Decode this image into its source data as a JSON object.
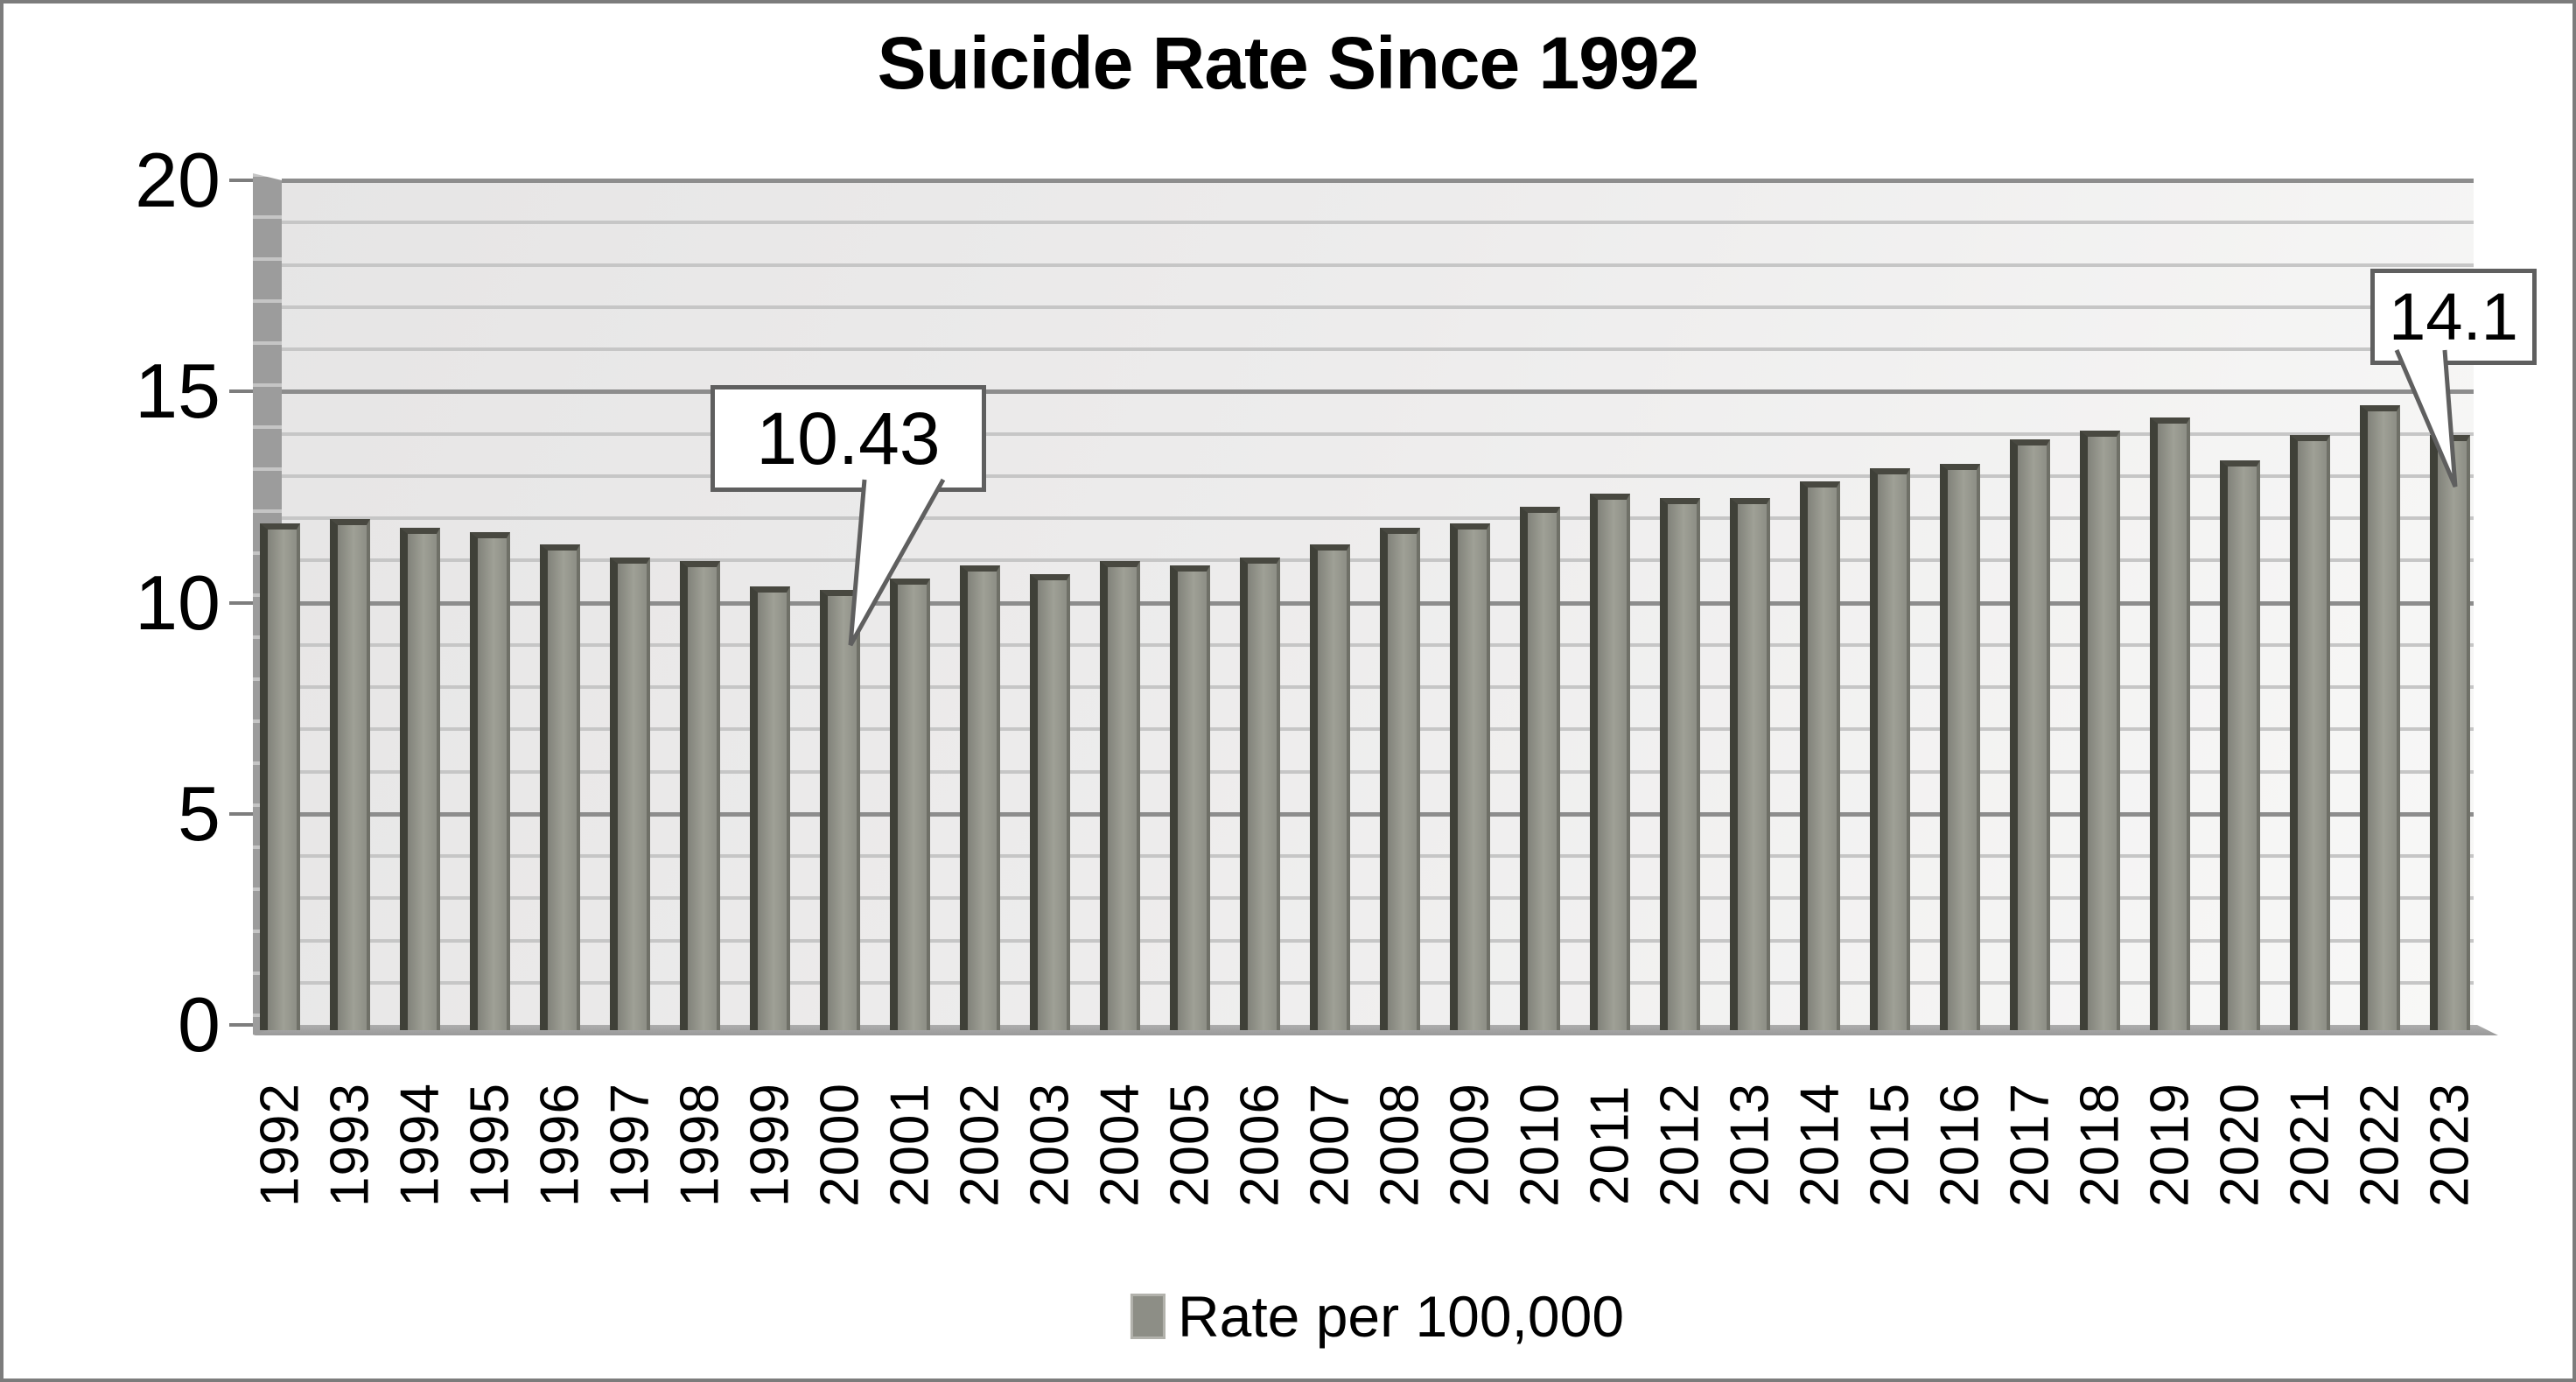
{
  "chart_data": {
    "type": "bar",
    "title": "Suicide Rate Since 1992",
    "series_name": "Rate per 100,000",
    "categories": [
      "1992",
      "1993",
      "1994",
      "1995",
      "1996",
      "1997",
      "1998",
      "1999",
      "2000",
      "2001",
      "2002",
      "2003",
      "2004",
      "2005",
      "2006",
      "2007",
      "2008",
      "2009",
      "2010",
      "2011",
      "2012",
      "2013",
      "2014",
      "2015",
      "2016",
      "2017",
      "2018",
      "2019",
      "2020",
      "2021",
      "2022",
      "2023"
    ],
    "values": [
      12.0,
      12.1,
      11.9,
      11.8,
      11.5,
      11.2,
      11.1,
      10.5,
      10.43,
      10.7,
      11.0,
      10.8,
      11.1,
      11.0,
      11.2,
      11.5,
      11.9,
      12.0,
      12.4,
      12.7,
      12.6,
      12.6,
      13.0,
      13.3,
      13.4,
      14.0,
      14.2,
      14.5,
      13.5,
      14.1,
      14.8,
      14.1
    ],
    "xlabel": "",
    "ylabel": "",
    "ylim": [
      0,
      20
    ],
    "y_ticks": [
      "0",
      "5",
      "10",
      "15",
      "20"
    ],
    "gridlines": {
      "minor_step": 1,
      "major_step": 5,
      "visible": true
    },
    "legend_position": "bottom",
    "annotations": [
      {
        "category": "2000",
        "label": "10.43"
      },
      {
        "category": "2023",
        "label": "14.1"
      }
    ],
    "bar_color": "#9fa096",
    "bar_edge_color": "#3f4038",
    "callout_border_color": "#5f5f5f"
  }
}
